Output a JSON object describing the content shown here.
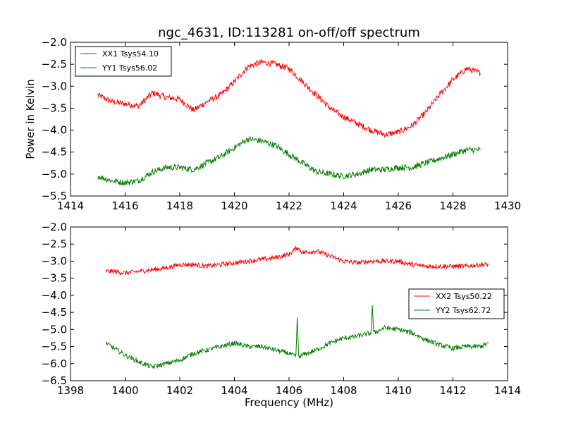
{
  "chart_data": [
    {
      "type": "line",
      "title": "ngc_4631, ID:113281 on-off/off spectrum",
      "xlabel": "",
      "ylabel": "Power in Kelvin",
      "xlim": [
        1414,
        1430
      ],
      "ylim": [
        -5.5,
        -2.0
      ],
      "xticks": [
        1414,
        1416,
        1418,
        1420,
        1422,
        1424,
        1426,
        1428,
        1430
      ],
      "yticks": [
        -2.0,
        -2.5,
        -3.0,
        -3.5,
        -4.0,
        -4.5,
        -5.0,
        -5.5
      ],
      "legend_position": "top-left",
      "series": [
        {
          "name": "XX1 Tsys54.10",
          "color": "#ff0000",
          "x": [
            1415.0,
            1415.5,
            1416.0,
            1416.5,
            1417.0,
            1417.5,
            1418.0,
            1418.5,
            1419.0,
            1419.5,
            1420.0,
            1420.5,
            1421.0,
            1421.5,
            1422.0,
            1422.5,
            1423.0,
            1423.5,
            1424.0,
            1424.5,
            1425.0,
            1425.5,
            1426.0,
            1426.5,
            1427.0,
            1427.5,
            1428.0,
            1428.5,
            1429.0
          ],
          "values": [
            -3.2,
            -3.35,
            -3.4,
            -3.45,
            -3.15,
            -3.25,
            -3.3,
            -3.55,
            -3.35,
            -3.2,
            -2.9,
            -2.55,
            -2.45,
            -2.5,
            -2.6,
            -2.9,
            -3.2,
            -3.5,
            -3.7,
            -3.85,
            -4.0,
            -4.1,
            -4.05,
            -3.9,
            -3.6,
            -3.2,
            -2.85,
            -2.6,
            -2.7
          ]
        },
        {
          "name": "YY1 Tsys56.02",
          "color": "#008000",
          "x": [
            1415.0,
            1415.5,
            1416.0,
            1416.5,
            1417.0,
            1417.5,
            1418.0,
            1418.5,
            1419.0,
            1419.5,
            1420.0,
            1420.5,
            1421.0,
            1421.5,
            1422.0,
            1422.5,
            1423.0,
            1423.5,
            1424.0,
            1424.5,
            1425.0,
            1425.5,
            1426.0,
            1426.5,
            1427.0,
            1427.5,
            1428.0,
            1428.5,
            1429.0
          ],
          "values": [
            -5.05,
            -5.15,
            -5.2,
            -5.15,
            -4.95,
            -4.85,
            -4.85,
            -4.9,
            -4.75,
            -4.6,
            -4.4,
            -4.2,
            -4.25,
            -4.35,
            -4.55,
            -4.75,
            -4.95,
            -5.0,
            -5.05,
            -5.0,
            -4.9,
            -4.9,
            -4.85,
            -4.85,
            -4.75,
            -4.65,
            -4.55,
            -4.45,
            -4.45
          ]
        }
      ]
    },
    {
      "type": "line",
      "title": "",
      "xlabel": "Frequency (MHz)",
      "ylabel": "",
      "xlim": [
        1398,
        1414
      ],
      "ylim": [
        -6.5,
        -2.0
      ],
      "xticks": [
        1398,
        1400,
        1402,
        1404,
        1406,
        1408,
        1410,
        1412,
        1414
      ],
      "yticks": [
        -2.0,
        -2.5,
        -3.0,
        -3.5,
        -4.0,
        -4.5,
        -5.0,
        -5.5,
        -6.0,
        -6.5
      ],
      "legend_position": "center-right",
      "series": [
        {
          "name": "XX2 Tsys50.22",
          "color": "#ff0000",
          "x": [
            1399.3,
            1399.6,
            1400.0,
            1400.5,
            1401.0,
            1401.5,
            1402.0,
            1402.5,
            1403.0,
            1403.5,
            1404.0,
            1404.5,
            1405.0,
            1405.5,
            1406.0,
            1406.3,
            1406.5,
            1407.0,
            1407.5,
            1408.0,
            1408.5,
            1409.0,
            1409.5,
            1410.0,
            1410.5,
            1411.0,
            1411.5,
            1412.0,
            1412.5,
            1413.0,
            1413.3
          ],
          "values": [
            -3.3,
            -3.3,
            -3.35,
            -3.3,
            -3.25,
            -3.2,
            -3.1,
            -3.1,
            -3.15,
            -3.1,
            -3.05,
            -3.0,
            -2.95,
            -2.9,
            -2.8,
            -2.6,
            -2.75,
            -2.7,
            -2.85,
            -3.0,
            -3.05,
            -3.0,
            -3.0,
            -3.0,
            -3.1,
            -3.15,
            -3.15,
            -3.15,
            -3.15,
            -3.1,
            -3.1
          ]
        },
        {
          "name": "YY2 Tsys62.72",
          "color": "#008000",
          "x": [
            1399.3,
            1399.6,
            1400.0,
            1400.5,
            1401.0,
            1401.5,
            1402.0,
            1402.5,
            1403.0,
            1403.5,
            1404.0,
            1404.5,
            1405.0,
            1405.5,
            1406.0,
            1406.25,
            1406.3,
            1406.35,
            1406.5,
            1407.0,
            1407.5,
            1408.0,
            1408.5,
            1409.0,
            1409.05,
            1409.1,
            1409.5,
            1410.0,
            1410.5,
            1411.0,
            1411.5,
            1412.0,
            1412.5,
            1413.0,
            1413.3
          ],
          "values": [
            -5.4,
            -5.55,
            -5.75,
            -5.95,
            -6.1,
            -6.0,
            -5.9,
            -5.7,
            -5.6,
            -5.5,
            -5.4,
            -5.5,
            -5.5,
            -5.6,
            -5.7,
            -5.8,
            -4.65,
            -5.8,
            -5.75,
            -5.6,
            -5.4,
            -5.25,
            -5.2,
            -5.1,
            -4.35,
            -5.1,
            -4.95,
            -5.0,
            -5.1,
            -5.3,
            -5.45,
            -5.55,
            -5.5,
            -5.5,
            -5.4
          ]
        }
      ]
    }
  ]
}
